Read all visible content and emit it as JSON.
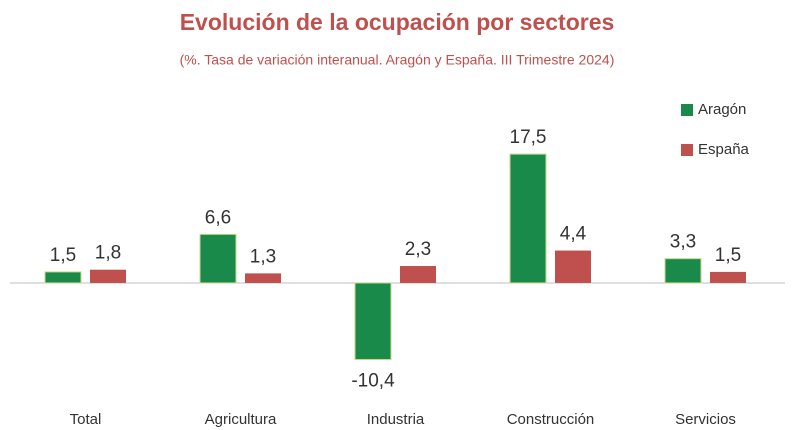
{
  "chart_data": {
    "type": "bar",
    "title": "Evolución de la ocupación por sectores",
    "subtitle": "(%. Tasa de variación interanual. Aragón y España. III Trimestre 2024)",
    "categories": [
      "Total",
      "Agricultura",
      "Industria",
      "Construcción",
      "Servicios"
    ],
    "series": [
      {
        "name": "Aragón",
        "color": "#1a8a4a",
        "values": [
          1.5,
          6.6,
          -10.4,
          17.5,
          3.3
        ],
        "value_labels": [
          "1,5",
          "6,6",
          "-10,4",
          "17,5",
          "3,3"
        ]
      },
      {
        "name": "España",
        "color": "#c0504d",
        "values": [
          1.8,
          1.3,
          2.3,
          4.4,
          1.5
        ],
        "value_labels": [
          "1,8",
          "1,3",
          "2,3",
          "4,4",
          "1,5"
        ]
      }
    ],
    "ylim": [
      -14,
      22
    ],
    "legend": "top-right"
  }
}
